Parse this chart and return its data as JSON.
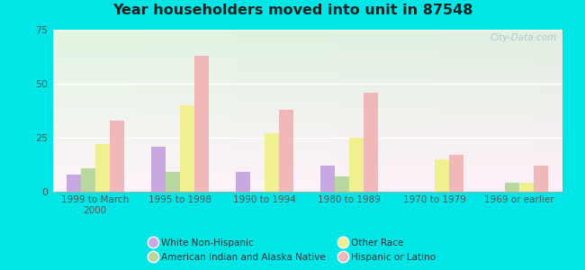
{
  "title": "Year householders moved into unit in 87548",
  "categories": [
    "1999 to March\n2000",
    "1995 to 1998",
    "1990 to 1994",
    "1980 to 1989",
    "1970 to 1979",
    "1969 or earlier"
  ],
  "series": {
    "White Non-Hispanic": [
      8,
      21,
      9,
      12,
      0,
      0
    ],
    "American Indian and Alaska Native": [
      11,
      9,
      0,
      7,
      0,
      4
    ],
    "Other Race": [
      22,
      40,
      27,
      25,
      15,
      4
    ],
    "Hispanic or Latino": [
      33,
      63,
      38,
      46,
      17,
      12
    ]
  },
  "colors": {
    "White Non-Hispanic": "#c8a8e0",
    "American Indian and Alaska Native": "#b8d8a0",
    "Other Race": "#f0f090",
    "Hispanic or Latino": "#f0b8b8"
  },
  "ylim": [
    0,
    75
  ],
  "yticks": [
    0,
    25,
    50,
    75
  ],
  "bar_width": 0.17,
  "outer_bg": "#00e5e5",
  "watermark": "City-Data.com"
}
